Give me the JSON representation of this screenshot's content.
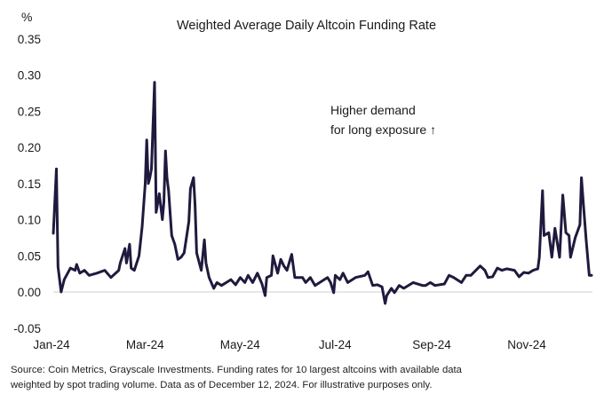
{
  "chart_data": {
    "type": "line",
    "title": "Weighted Average Daily Altcoin Funding Rate",
    "ylabel": "%",
    "xlabel": "",
    "ylim": [
      -0.05,
      0.35
    ],
    "yticks": [
      "0.35",
      "0.30",
      "0.25",
      "0.20",
      "0.15",
      "0.10",
      "0.05",
      "0.00",
      "-0.05"
    ],
    "ytick_values": [
      0.35,
      0.3,
      0.25,
      0.2,
      0.15,
      0.1,
      0.05,
      0.0,
      -0.05
    ],
    "xticks": [
      "Jan-24",
      "Mar-24",
      "May-24",
      "Jul-24",
      "Sep-24",
      "Nov-24"
    ],
    "xtick_dates": [
      "2024-01-01",
      "2024-03-01",
      "2024-05-01",
      "2024-07-01",
      "2024-09-01",
      "2024-11-01"
    ],
    "xlim": [
      "2024-01-01",
      "2024-12-12"
    ],
    "grid": false,
    "zero_line": true,
    "line_color": "#1f1a3d",
    "annotation": [
      "Higher demand",
      "for long exposure ↑"
    ],
    "series": [
      {
        "x": [
          "2024-01-01",
          "2024-01-03",
          "2024-01-04",
          "2024-01-06",
          "2024-01-08",
          "2024-01-12",
          "2024-01-15",
          "2024-01-16",
          "2024-01-18",
          "2024-01-21",
          "2024-01-24",
          "2024-01-29",
          "2024-02-03",
          "2024-02-07",
          "2024-02-12",
          "2024-02-13",
          "2024-02-16",
          "2024-02-17",
          "2024-02-19",
          "2024-02-20",
          "2024-02-22",
          "2024-02-25",
          "2024-02-27",
          "2024-02-29",
          "2024-03-01",
          "2024-03-02",
          "2024-03-03",
          "2024-03-04",
          "2024-03-06",
          "2024-03-07",
          "2024-03-09",
          "2024-03-11",
          "2024-03-12",
          "2024-03-13",
          "2024-03-14",
          "2024-03-15",
          "2024-03-17",
          "2024-03-19",
          "2024-03-21",
          "2024-03-23",
          "2024-03-25",
          "2024-03-28",
          "2024-03-29",
          "2024-03-31",
          "2024-04-01",
          "2024-04-02",
          "2024-04-05",
          "2024-04-07",
          "2024-04-08",
          "2024-04-10",
          "2024-04-13",
          "2024-04-15",
          "2024-04-18",
          "2024-04-21",
          "2024-04-24",
          "2024-04-27",
          "2024-04-30",
          "2024-05-03",
          "2024-05-05",
          "2024-05-08",
          "2024-05-11",
          "2024-05-14",
          "2024-05-16",
          "2024-05-17",
          "2024-05-20",
          "2024-05-21",
          "2024-05-24",
          "2024-05-26",
          "2024-05-28",
          "2024-05-30",
          "2024-06-02",
          "2024-06-04",
          "2024-06-09",
          "2024-06-11",
          "2024-06-14",
          "2024-06-17",
          "2024-06-20",
          "2024-06-25",
          "2024-06-27",
          "2024-06-29",
          "2024-06-30",
          "2024-07-03",
          "2024-07-05",
          "2024-07-08",
          "2024-07-13",
          "2024-07-19",
          "2024-07-21",
          "2024-07-24",
          "2024-07-27",
          "2024-07-30",
          "2024-08-01",
          "2024-08-02",
          "2024-08-05",
          "2024-08-07",
          "2024-08-10",
          "2024-08-13",
          "2024-08-19",
          "2024-08-25",
          "2024-08-27",
          "2024-08-30",
          "2024-09-02",
          "2024-09-08",
          "2024-09-11",
          "2024-09-14",
          "2024-09-19",
          "2024-09-22",
          "2024-09-25",
          "2024-10-01",
          "2024-10-04",
          "2024-10-06",
          "2024-10-09",
          "2024-10-12",
          "2024-10-15",
          "2024-10-18",
          "2024-10-23",
          "2024-10-26",
          "2024-10-29",
          "2024-11-01",
          "2024-11-04",
          "2024-11-07",
          "2024-11-08",
          "2024-11-10",
          "2024-11-11",
          "2024-11-14",
          "2024-11-16",
          "2024-11-18",
          "2024-11-21",
          "2024-11-23",
          "2024-11-25",
          "2024-11-27",
          "2024-11-28",
          "2024-12-01",
          "2024-12-04",
          "2024-12-05",
          "2024-12-06",
          "2024-12-08",
          "2024-12-10",
          "2024-12-12"
        ],
        "y": [
          0.08,
          0.17,
          0.035,
          0.0,
          0.017,
          0.033,
          0.03,
          0.038,
          0.026,
          0.03,
          0.023,
          0.026,
          0.03,
          0.02,
          0.03,
          0.04,
          0.06,
          0.04,
          0.066,
          0.033,
          0.03,
          0.05,
          0.09,
          0.15,
          0.21,
          0.15,
          0.158,
          0.17,
          0.29,
          0.11,
          0.136,
          0.1,
          0.124,
          0.195,
          0.158,
          0.14,
          0.078,
          0.066,
          0.045,
          0.048,
          0.054,
          0.097,
          0.143,
          0.158,
          0.12,
          0.054,
          0.03,
          0.072,
          0.04,
          0.02,
          0.005,
          0.013,
          0.009,
          0.013,
          0.017,
          0.01,
          0.02,
          0.013,
          0.023,
          0.013,
          0.026,
          0.011,
          -0.005,
          0.02,
          0.023,
          0.05,
          0.026,
          0.045,
          0.036,
          0.03,
          0.052,
          0.02,
          0.02,
          0.013,
          0.02,
          0.009,
          0.013,
          0.02,
          0.013,
          -0.001,
          0.023,
          0.017,
          0.026,
          0.013,
          0.02,
          0.023,
          0.028,
          0.009,
          0.01,
          0.007,
          -0.016,
          -0.005,
          0.005,
          -0.001,
          0.009,
          0.005,
          0.013,
          0.009,
          0.009,
          0.013,
          0.009,
          0.011,
          0.023,
          0.02,
          0.013,
          0.023,
          0.023,
          0.036,
          0.03,
          0.02,
          0.021,
          0.033,
          0.03,
          0.032,
          0.03,
          0.021,
          0.027,
          0.026,
          0.03,
          0.032,
          0.048,
          0.14,
          0.078,
          0.082,
          0.048,
          0.088,
          0.048,
          0.134,
          0.082,
          0.078,
          0.048,
          0.075,
          0.093,
          0.158,
          0.128,
          0.072,
          0.023,
          0.023
        ]
      }
    ]
  },
  "footer": {
    "line1": "Source: Coin Metrics, Grayscale Investments. Funding rates for 10 largest altcoins with available data",
    "line2": "weighted by spot trading volume. Data as of December 12, 2024. For illustrative purposes only."
  }
}
